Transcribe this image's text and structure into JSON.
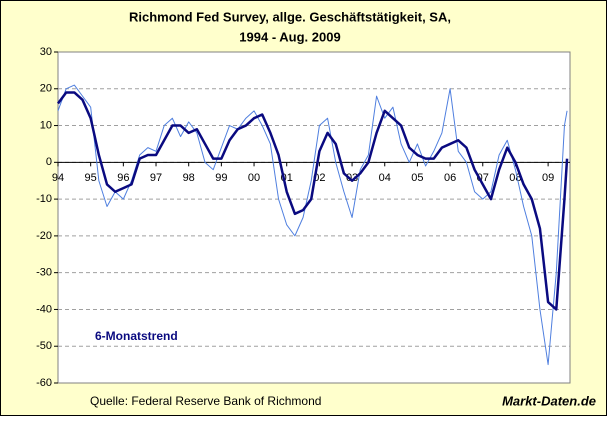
{
  "chart_data": {
    "type": "line",
    "title": "Richmond Fed Survey, allge. Geschäftstätigkeit, SA,",
    "subtitle": "1994 - Aug. 2009",
    "source": "Quelle: Federal Reserve Bank of Richmond",
    "brand": "Markt-Daten.de",
    "x": [
      1994,
      1994.25,
      1994.5,
      1994.75,
      1995,
      1995.25,
      1995.5,
      1995.75,
      1996,
      1996.25,
      1996.5,
      1996.75,
      1997,
      1997.25,
      1997.5,
      1997.75,
      1998,
      1998.25,
      1998.5,
      1998.75,
      1999,
      1999.25,
      1999.5,
      1999.75,
      2000,
      2000.25,
      2000.5,
      2000.75,
      2001,
      2001.25,
      2001.5,
      2001.75,
      2002,
      2002.25,
      2002.5,
      2002.75,
      2003,
      2003.25,
      2003.5,
      2003.75,
      2004,
      2004.25,
      2004.5,
      2004.75,
      2005,
      2005.25,
      2005.5,
      2005.75,
      2006,
      2006.25,
      2006.5,
      2006.75,
      2007,
      2007.25,
      2007.5,
      2007.75,
      2008,
      2008.25,
      2008.5,
      2008.75,
      2009,
      2009.25,
      2009.5,
      2009.58
    ],
    "series": [
      {
        "color": "#4f7fdf",
        "width": 1,
        "values": [
          14,
          20,
          21,
          18,
          15,
          -5,
          -12,
          -8,
          -10,
          -5,
          2,
          4,
          3,
          10,
          12,
          7,
          11,
          8,
          0,
          -2,
          4,
          10,
          9,
          12,
          14,
          10,
          5,
          -10,
          -17,
          -20,
          -15,
          -5,
          10,
          12,
          0,
          -8,
          -15,
          -2,
          2,
          18,
          12,
          15,
          5,
          0,
          5,
          -1,
          3,
          8,
          20,
          3,
          0,
          -8,
          -10,
          -8,
          2,
          6,
          -2,
          -12,
          -20,
          -40,
          -55,
          -30,
          10,
          14
        ]
      },
      {
        "name": "6-Monatstrend",
        "color": "#0a0a80",
        "width": 2.5,
        "values": [
          16,
          19,
          19,
          17,
          12,
          2,
          -6,
          -8,
          -7,
          -6,
          1,
          2,
          2,
          6,
          10,
          10,
          8,
          9,
          5,
          1,
          1,
          6,
          9,
          10,
          12,
          13,
          8,
          2,
          -8,
          -14,
          -13,
          -10,
          3,
          8,
          5,
          -3,
          -5,
          -3,
          0,
          8,
          14,
          12,
          10,
          4,
          2,
          1,
          1,
          4,
          5,
          6,
          4,
          -2,
          -6,
          -10,
          -2,
          4,
          0,
          -6,
          -10,
          -18,
          -38,
          -40,
          -10,
          1
        ]
      }
    ],
    "xlim": [
      1994,
      2009.67
    ],
    "xticks": [
      {
        "value": 1994,
        "label": "94"
      },
      {
        "value": 1995,
        "label": "95"
      },
      {
        "value": 1996,
        "label": "96"
      },
      {
        "value": 1997,
        "label": "97"
      },
      {
        "value": 1998,
        "label": "98"
      },
      {
        "value": 1999,
        "label": "99"
      },
      {
        "value": 2000,
        "label": "00"
      },
      {
        "value": 2001,
        "label": "01"
      },
      {
        "value": 2002,
        "label": "02"
      },
      {
        "value": 2003,
        "label": "03"
      },
      {
        "value": 2004,
        "label": "04"
      },
      {
        "value": 2005,
        "label": "05"
      },
      {
        "value": 2006,
        "label": "06"
      },
      {
        "value": 2007,
        "label": "07"
      },
      {
        "value": 2008,
        "label": "08"
      },
      {
        "value": 2009,
        "label": "09"
      }
    ],
    "ylim": [
      -60,
      30
    ],
    "yticks": [
      -60,
      -50,
      -40,
      -30,
      -20,
      -10,
      0,
      10,
      20,
      30
    ],
    "grid": true
  }
}
